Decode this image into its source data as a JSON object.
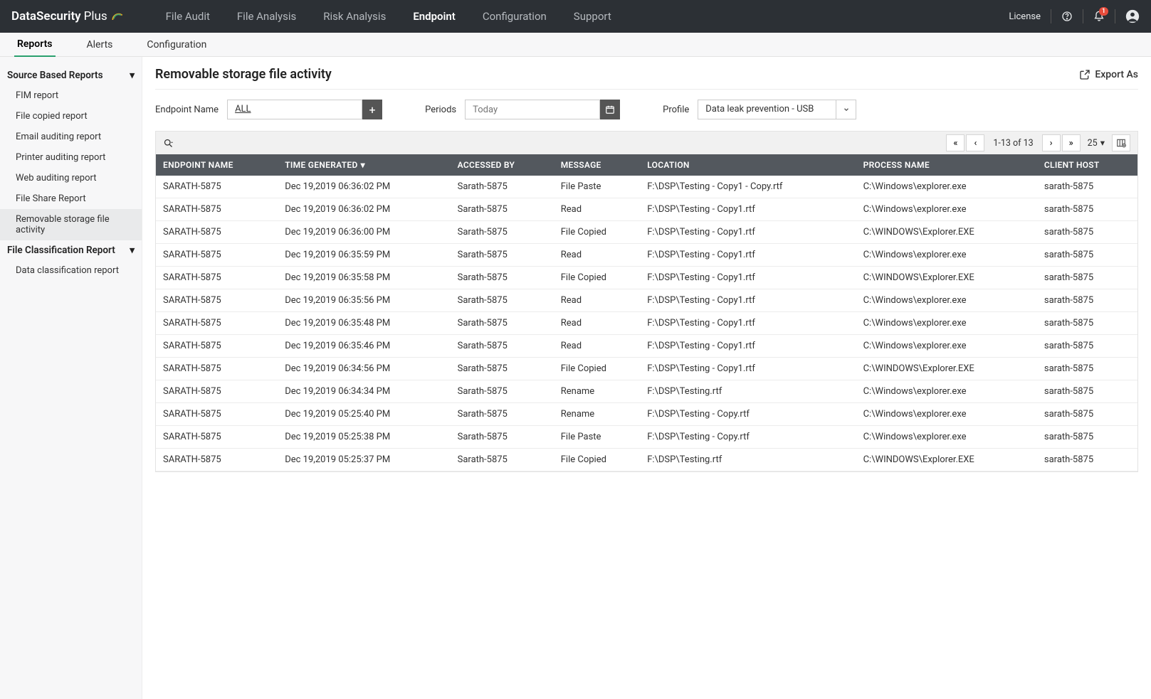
{
  "product": {
    "name": "DataSecurity",
    "suffix": "Plus"
  },
  "topnav": [
    {
      "label": "File Audit",
      "active": false
    },
    {
      "label": "File Analysis",
      "active": false
    },
    {
      "label": "Risk Analysis",
      "active": false
    },
    {
      "label": "Endpoint",
      "active": true
    },
    {
      "label": "Configuration",
      "active": false
    },
    {
      "label": "Support",
      "active": false
    }
  ],
  "topbarRight": {
    "license": "License",
    "notificationCount": "1"
  },
  "subnav": [
    {
      "label": "Reports",
      "active": true
    },
    {
      "label": "Alerts",
      "active": false
    },
    {
      "label": "Configuration",
      "active": false
    }
  ],
  "sidebar": {
    "groups": [
      {
        "title": "Source Based Reports",
        "items": [
          {
            "label": "FIM report",
            "active": false
          },
          {
            "label": "File copied report",
            "active": false
          },
          {
            "label": "Email auditing report",
            "active": false
          },
          {
            "label": "Printer auditing report",
            "active": false
          },
          {
            "label": "Web auditing report",
            "active": false
          },
          {
            "label": "File Share Report",
            "active": false
          },
          {
            "label": "Removable storage file activity",
            "active": true
          }
        ]
      },
      {
        "title": "File Classification Report",
        "items": [
          {
            "label": "Data classification report",
            "active": false
          }
        ]
      }
    ]
  },
  "page": {
    "title": "Removable storage file activity",
    "export": "Export As"
  },
  "filters": {
    "endpoint": {
      "label": "Endpoint Name",
      "value": "ALL"
    },
    "period": {
      "label": "Periods",
      "placeholder": "Today"
    },
    "profile": {
      "label": "Profile",
      "value": "Data leak prevention - USB"
    }
  },
  "table": {
    "pagerText": "1-13 of 13",
    "pageSize": "25",
    "columns": [
      "ENDPOINT NAME",
      "TIME GENERATED",
      "ACCESSED BY",
      "MESSAGE",
      "LOCATION",
      "PROCESS NAME",
      "CLIENT HOST"
    ],
    "sortColumn": 1,
    "rows": [
      [
        "SARATH-5875",
        "Dec 19,2019 06:36:02 PM",
        "Sarath-5875",
        "File Paste",
        "F:\\DSP\\Testing - Copy1 - Copy.rtf",
        "C:\\Windows\\explorer.exe",
        "sarath-5875"
      ],
      [
        "SARATH-5875",
        "Dec 19,2019 06:36:02 PM",
        "Sarath-5875",
        "Read",
        "F:\\DSP\\Testing - Copy1.rtf",
        "C:\\Windows\\explorer.exe",
        "sarath-5875"
      ],
      [
        "SARATH-5875",
        "Dec 19,2019 06:36:00 PM",
        "Sarath-5875",
        "File Copied",
        "F:\\DSP\\Testing - Copy1.rtf",
        "C:\\WINDOWS\\Explorer.EXE",
        "sarath-5875"
      ],
      [
        "SARATH-5875",
        "Dec 19,2019 06:35:59 PM",
        "Sarath-5875",
        "Read",
        "F:\\DSP\\Testing - Copy1.rtf",
        "C:\\Windows\\explorer.exe",
        "sarath-5875"
      ],
      [
        "SARATH-5875",
        "Dec 19,2019 06:35:58 PM",
        "Sarath-5875",
        "File Copied",
        "F:\\DSP\\Testing - Copy1.rtf",
        "C:\\WINDOWS\\Explorer.EXE",
        "sarath-5875"
      ],
      [
        "SARATH-5875",
        "Dec 19,2019 06:35:56 PM",
        "Sarath-5875",
        "Read",
        "F:\\DSP\\Testing - Copy1.rtf",
        "C:\\Windows\\explorer.exe",
        "sarath-5875"
      ],
      [
        "SARATH-5875",
        "Dec 19,2019 06:35:48 PM",
        "Sarath-5875",
        "Read",
        "F:\\DSP\\Testing - Copy1.rtf",
        "C:\\Windows\\explorer.exe",
        "sarath-5875"
      ],
      [
        "SARATH-5875",
        "Dec 19,2019 06:35:46 PM",
        "Sarath-5875",
        "Read",
        "F:\\DSP\\Testing - Copy1.rtf",
        "C:\\Windows\\explorer.exe",
        "sarath-5875"
      ],
      [
        "SARATH-5875",
        "Dec 19,2019 06:34:56 PM",
        "Sarath-5875",
        "File Copied",
        "F:\\DSP\\Testing - Copy1.rtf",
        "C:\\WINDOWS\\Explorer.EXE",
        "sarath-5875"
      ],
      [
        "SARATH-5875",
        "Dec 19,2019 06:34:34 PM",
        "Sarath-5875",
        "Rename",
        "F:\\DSP\\Testing.rtf",
        "C:\\Windows\\explorer.exe",
        "sarath-5875"
      ],
      [
        "SARATH-5875",
        "Dec 19,2019 05:25:40 PM",
        "Sarath-5875",
        "Rename",
        "F:\\DSP\\Testing - Copy.rtf",
        "C:\\Windows\\explorer.exe",
        "sarath-5875"
      ],
      [
        "SARATH-5875",
        "Dec 19,2019 05:25:38 PM",
        "Sarath-5875",
        "File Paste",
        "F:\\DSP\\Testing - Copy.rtf",
        "C:\\Windows\\explorer.exe",
        "sarath-5875"
      ],
      [
        "SARATH-5875",
        "Dec 19,2019 05:25:37 PM",
        "Sarath-5875",
        "File Copied",
        "F:\\DSP\\Testing.rtf",
        "C:\\WINDOWS\\Explorer.EXE",
        "sarath-5875"
      ]
    ]
  },
  "colors": {
    "topbar": "#2c3035",
    "tableHeader": "#53585e",
    "accent": "#2aa06e",
    "badge": "#e74c3c"
  }
}
